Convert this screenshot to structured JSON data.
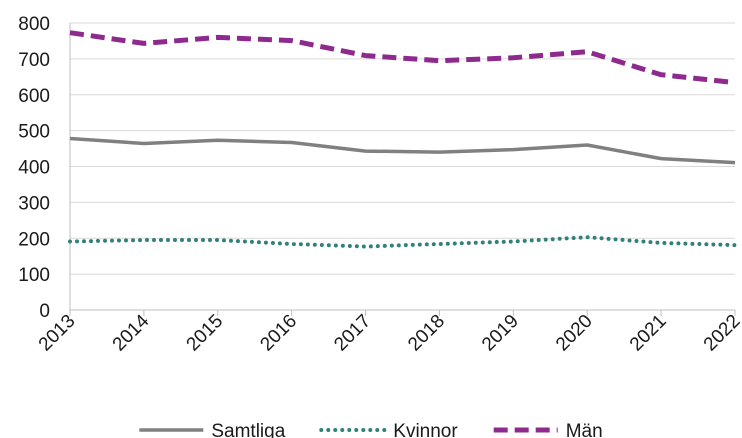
{
  "chart_data": {
    "type": "line",
    "title": "",
    "xlabel": "",
    "ylabel": "",
    "categories": [
      "2013",
      "2014",
      "2015",
      "2016",
      "2017",
      "2018",
      "2019",
      "2020",
      "2021",
      "2022"
    ],
    "ylim": [
      0,
      800
    ],
    "yticks": [
      "0",
      "100",
      "200",
      "300",
      "400",
      "500",
      "600",
      "700",
      "800"
    ],
    "grid": "horizontal",
    "legend": "bottom",
    "series": [
      {
        "name": "Samtliga",
        "color": "#808080",
        "style": "solid",
        "values": [
          478,
          464,
          473,
          467,
          443,
          440,
          447,
          460,
          422,
          411
        ]
      },
      {
        "name": "Kvinnor",
        "color": "#31807a",
        "style": "dotted",
        "values": [
          191,
          195,
          195,
          184,
          177,
          184,
          191,
          203,
          187,
          181
        ]
      },
      {
        "name": "Män",
        "color": "#8e2a8e",
        "style": "dashed",
        "values": [
          773,
          743,
          760,
          751,
          709,
          695,
          703,
          720,
          656,
          634
        ]
      }
    ]
  }
}
